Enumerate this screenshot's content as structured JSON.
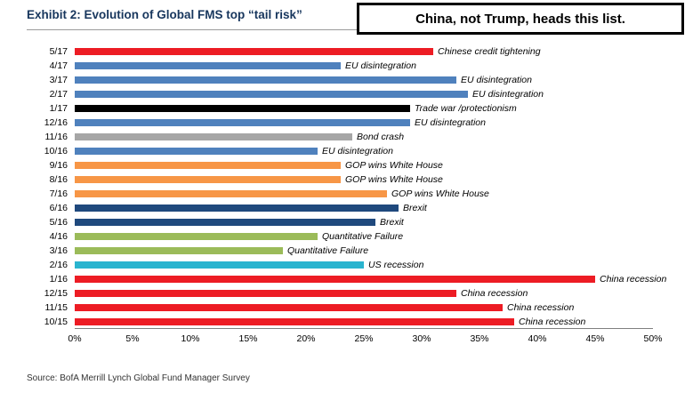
{
  "chart_data": {
    "type": "bar",
    "orientation": "horizontal",
    "title": "Exhibit 2: Evolution of Global FMS top “tail risk”",
    "annotation": "China, not Trump, heads this list.",
    "categories": [
      "5/17",
      "4/17",
      "3/17",
      "2/17",
      "1/17",
      "12/16",
      "11/16",
      "10/16",
      "9/16",
      "8/16",
      "7/16",
      "6/16",
      "5/16",
      "4/16",
      "3/16",
      "2/16",
      "1/16",
      "12/15",
      "11/15",
      "10/15"
    ],
    "values": [
      31,
      23,
      33,
      34,
      29,
      29,
      24,
      21,
      23,
      23,
      27,
      28,
      26,
      21,
      18,
      25,
      45,
      33,
      37,
      38
    ],
    "bar_labels": [
      "Chinese credit tightening",
      "EU disintegration",
      "EU disintegration",
      "EU disintegration",
      "Trade war /protectionism",
      "EU disintegration",
      "Bond crash",
      "EU disintegration",
      "GOP wins White House",
      "GOP wins White House",
      "GOP wins White House",
      "Brexit",
      "Brexit",
      "Quantitative Failure",
      "Quantitative Failure",
      "US recession",
      "China recession",
      "China recession",
      "China recession",
      "China recession"
    ],
    "bar_colors": [
      "#ed1c24",
      "#4f81bd",
      "#4f81bd",
      "#4f81bd",
      "#000000",
      "#4f81bd",
      "#a6a6a6",
      "#4f81bd",
      "#f79646",
      "#f79646",
      "#f79646",
      "#1f497d",
      "#1f497d",
      "#9bbb59",
      "#9bbb59",
      "#2ab4cf",
      "#ed1c24",
      "#ed1c24",
      "#ed1c24",
      "#ed1c24"
    ],
    "xlim": [
      0,
      50
    ],
    "x_tick_labels": [
      "0%",
      "5%",
      "10%",
      "15%",
      "20%",
      "25%",
      "30%",
      "35%",
      "40%",
      "45%",
      "50%"
    ],
    "grid": false,
    "legend": false
  },
  "footer": {
    "source": "Source: BofA Merrill Lynch Global Fund Manager Survey"
  }
}
